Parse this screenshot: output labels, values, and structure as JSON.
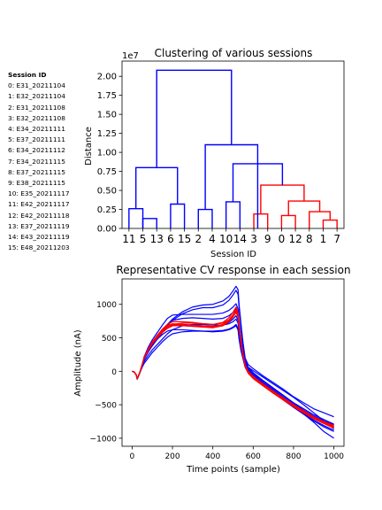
{
  "session_legend": {
    "title": "Session ID",
    "items": [
      "0: E31_20211104",
      "1: E32_20211104",
      "2: E31_20211108",
      "3: E32_20211108",
      "4: E34_20211111",
      "5: E37_20211111",
      "6: E34_20211112",
      "7: E34_20211115",
      "8: E37_20211115",
      "9: E38_20211115",
      "10: E35_20211117",
      "11: E42_20211117",
      "12: E42_20211118",
      "13: E37_20211119",
      "14: E43_20211119",
      "15: E48_20211203"
    ]
  },
  "chart_data": [
    {
      "type": "dendrogram",
      "title": "Clustering of various sessions",
      "xlabel": "Session ID",
      "ylabel": "Distance",
      "y_scale_label": "1e7",
      "ylim": [
        0,
        2.2
      ],
      "yticks": [
        "0.00",
        "0.25",
        "0.50",
        "0.75",
        "1.00",
        "1.25",
        "1.50",
        "1.75",
        "2.00"
      ],
      "ytick_values": [
        0,
        0.25,
        0.5,
        0.75,
        1.0,
        1.25,
        1.5,
        1.75,
        2.0
      ],
      "leaf_order": [
        "11",
        "5",
        "13",
        "6",
        "15",
        "2",
        "4",
        "10",
        "14",
        "3",
        "9",
        "0",
        "12",
        "8",
        "1",
        "7"
      ],
      "colors": {
        "blue": "#0000ff",
        "red": "#ff0000"
      },
      "links": [
        {
          "left": 0,
          "right": 1,
          "height": 0.26,
          "color": "blue"
        },
        {
          "left": 1,
          "right": 2,
          "height": 0.13,
          "color": "blue"
        },
        {
          "left": 3,
          "right": 4,
          "height": 0.32,
          "color": "blue"
        },
        {
          "left": 0.5,
          "right": 3.5,
          "height": 0.8,
          "color": "blue"
        },
        {
          "left": 5,
          "right": 6,
          "height": 0.25,
          "color": "blue"
        },
        {
          "left": 7,
          "right": 8,
          "height": 0.35,
          "color": "blue"
        },
        {
          "left": 9,
          "right": 10,
          "height": 0.19,
          "color": "red"
        },
        {
          "left": 11,
          "right": 12,
          "height": 0.17,
          "color": "red"
        },
        {
          "left": 14,
          "right": 15,
          "height": 0.11,
          "color": "red"
        },
        {
          "left": 13,
          "right": 14.5,
          "height": 0.22,
          "color": "red"
        },
        {
          "left": 11.5,
          "right": 13.75,
          "height": 0.36,
          "color": "red"
        },
        {
          "left": 9.5,
          "right": 12.625,
          "height": 0.57,
          "color": "red"
        },
        {
          "left": 7.5,
          "right": 11.0625,
          "height": 0.85,
          "color": "blue"
        },
        {
          "left": 5.5,
          "right": 9.28,
          "height": 1.1,
          "color": "blue"
        },
        {
          "left": 2,
          "right": 7.39,
          "height": 2.08,
          "color": "blue"
        }
      ]
    },
    {
      "type": "line",
      "title": "Representative CV response in each session",
      "xlabel": "Time points (sample)",
      "ylabel": "Amplitude (nA)",
      "xlim": [
        -50,
        1050
      ],
      "ylim": [
        -1120,
        1380
      ],
      "xticks": [
        0,
        200,
        400,
        600,
        800,
        1000
      ],
      "yticks": [
        -1000,
        -500,
        0,
        500,
        1000
      ],
      "x": [
        0,
        10,
        20,
        25,
        30,
        40,
        50,
        60,
        80,
        100,
        125,
        150,
        175,
        200,
        250,
        300,
        350,
        400,
        450,
        480,
        500,
        515,
        525,
        530,
        540,
        550,
        560,
        575,
        600,
        650,
        700,
        750,
        800,
        850,
        900,
        950,
        1000
      ],
      "series": [
        {
          "color": "blue",
          "values": [
            0,
            -10,
            -50,
            -110,
            -80,
            0,
            100,
            200,
            300,
            390,
            490,
            590,
            700,
            780,
            890,
            960,
            990,
            1000,
            1050,
            1120,
            1200,
            1270,
            1220,
            1000,
            700,
            420,
            200,
            100,
            40,
            -70,
            -170,
            -270,
            -380,
            -470,
            -560,
            -620,
            -680
          ]
        },
        {
          "color": "blue",
          "values": [
            0,
            -10,
            -55,
            -120,
            -90,
            -10,
            90,
            190,
            290,
            380,
            480,
            580,
            680,
            760,
            860,
            920,
            950,
            950,
            990,
            1060,
            1140,
            1210,
            1150,
            950,
            650,
            400,
            190,
            60,
            -20,
            -140,
            -250,
            -360,
            -470,
            -560,
            -650,
            -720,
            -790
          ]
        },
        {
          "color": "blue",
          "values": [
            0,
            -10,
            -50,
            -110,
            -80,
            0,
            100,
            210,
            330,
            430,
            530,
            620,
            700,
            760,
            790,
            800,
            790,
            780,
            790,
            830,
            880,
            940,
            870,
            700,
            480,
            300,
            140,
            30,
            -50,
            -170,
            -280,
            -390,
            -500,
            -600,
            -690,
            -770,
            -840
          ]
        },
        {
          "color": "blue",
          "values": [
            0,
            -10,
            -50,
            -110,
            -80,
            0,
            100,
            220,
            360,
            470,
            580,
            690,
            790,
            840,
            850,
            850,
            850,
            850,
            870,
            910,
            960,
            1010,
            930,
            740,
            500,
            300,
            140,
            20,
            -60,
            -180,
            -300,
            -420,
            -530,
            -640,
            -760,
            -900,
            -1000
          ]
        },
        {
          "color": "blue",
          "values": [
            0,
            -10,
            -50,
            -110,
            -80,
            0,
            90,
            180,
            290,
            390,
            480,
            550,
            600,
            620,
            620,
            610,
            600,
            590,
            600,
            620,
            650,
            680,
            620,
            480,
            300,
            180,
            60,
            -20,
            -90,
            -200,
            -310,
            -420,
            -530,
            -630,
            -730,
            -810,
            -880
          ]
        },
        {
          "color": "blue",
          "values": [
            0,
            -10,
            -50,
            -110,
            -80,
            -10,
            60,
            120,
            200,
            280,
            360,
            440,
            510,
            560,
            590,
            600,
            600,
            600,
            610,
            630,
            660,
            700,
            640,
            500,
            330,
            200,
            80,
            -10,
            -90,
            -210,
            -320,
            -430,
            -540,
            -640,
            -740,
            -830,
            -900
          ]
        },
        {
          "color": "blue",
          "values": [
            0,
            -10,
            -50,
            -110,
            -80,
            0,
            70,
            150,
            240,
            320,
            400,
            480,
            560,
            620,
            680,
            700,
            700,
            690,
            690,
            710,
            740,
            780,
            720,
            560,
            380,
            250,
            130,
            60,
            10,
            -90,
            -190,
            -290,
            -390,
            -500,
            -620,
            -740,
            -860
          ]
        },
        {
          "color": "blue",
          "values": [
            0,
            -10,
            -50,
            -110,
            -80,
            0,
            100,
            200,
            320,
            420,
            520,
            600,
            660,
            690,
            700,
            690,
            680,
            670,
            690,
            730,
            780,
            830,
            760,
            600,
            400,
            260,
            130,
            40,
            -40,
            -150,
            -260,
            -370,
            -480,
            -580,
            -670,
            -740,
            -800
          ]
        },
        {
          "color": "red",
          "values": [
            0,
            -10,
            -50,
            -110,
            -80,
            0,
            100,
            210,
            330,
            440,
            540,
            630,
            700,
            740,
            740,
            730,
            710,
            700,
            730,
            800,
            880,
            960,
            880,
            700,
            450,
            260,
            100,
            0,
            -80,
            -200,
            -310,
            -420,
            -530,
            -620,
            -710,
            -780,
            -850
          ]
        },
        {
          "color": "red",
          "values": [
            0,
            -10,
            -50,
            -110,
            -80,
            0,
            100,
            210,
            330,
            440,
            530,
            620,
            680,
            710,
            700,
            680,
            660,
            650,
            680,
            740,
            810,
            880,
            810,
            640,
            400,
            220,
            70,
            -30,
            -110,
            -220,
            -330,
            -430,
            -530,
            -620,
            -700,
            -770,
            -830
          ]
        },
        {
          "color": "red",
          "values": [
            0,
            -10,
            -50,
            -110,
            -80,
            0,
            100,
            200,
            310,
            420,
            510,
            590,
            650,
            690,
            690,
            680,
            670,
            660,
            690,
            750,
            820,
            900,
            830,
            660,
            420,
            240,
            90,
            -10,
            -90,
            -200,
            -300,
            -400,
            -500,
            -590,
            -680,
            -750,
            -810
          ]
        },
        {
          "color": "red",
          "values": [
            0,
            -10,
            -50,
            -110,
            -80,
            0,
            100,
            200,
            320,
            430,
            520,
            600,
            660,
            700,
            720,
            720,
            710,
            700,
            720,
            770,
            840,
            920,
            850,
            680,
            440,
            250,
            100,
            0,
            -80,
            -190,
            -300,
            -410,
            -510,
            -600,
            -690,
            -760,
            -820
          ]
        },
        {
          "color": "red",
          "values": [
            0,
            -10,
            -50,
            -110,
            -80,
            0,
            100,
            210,
            320,
            420,
            510,
            590,
            650,
            680,
            680,
            670,
            660,
            660,
            690,
            750,
            830,
            910,
            840,
            670,
            430,
            240,
            90,
            -10,
            -90,
            -210,
            -320,
            -420,
            -520,
            -610,
            -700,
            -770,
            -840
          ]
        },
        {
          "color": "red",
          "values": [
            0,
            -10,
            -50,
            -110,
            -80,
            0,
            100,
            200,
            310,
            410,
            500,
            580,
            640,
            680,
            690,
            690,
            680,
            670,
            700,
            760,
            840,
            920,
            850,
            670,
            430,
            240,
            90,
            -10,
            -90,
            -200,
            -310,
            -410,
            -510,
            -600,
            -690,
            -760,
            -820
          ]
        }
      ]
    }
  ]
}
